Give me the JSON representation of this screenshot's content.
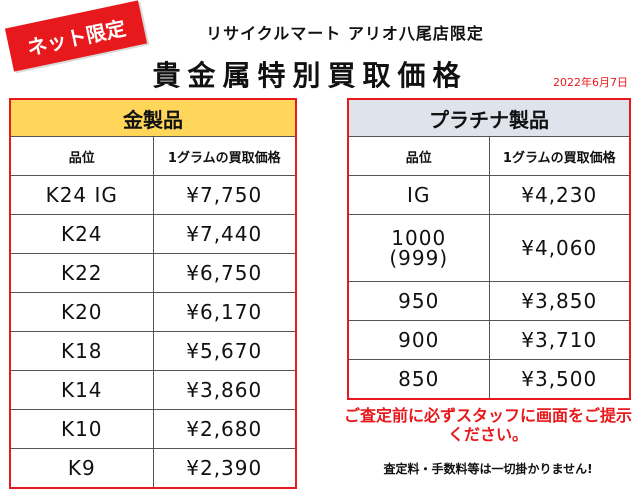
{
  "badge": "ネット限定",
  "store_name": "リサイクルマート アリオ八尾店限定",
  "title": "貴金属特別買取価格",
  "date": "2022年6月7日",
  "gold": {
    "caption": "金製品",
    "col_grade": "品位",
    "col_price": "1グラムの買取価格",
    "rows": [
      {
        "grade": "K24 IG",
        "price": "¥7,750"
      },
      {
        "grade": "K24",
        "price": "¥7,440"
      },
      {
        "grade": "K22",
        "price": "¥6,750"
      },
      {
        "grade": "K20",
        "price": "¥6,170"
      },
      {
        "grade": "K18",
        "price": "¥5,670"
      },
      {
        "grade": "K14",
        "price": "¥3,860"
      },
      {
        "grade": "K10",
        "price": "¥2,680"
      },
      {
        "grade": "K9",
        "price": "¥2,390"
      }
    ]
  },
  "platinum": {
    "caption": "プラチナ製品",
    "col_grade": "品位",
    "col_price": "1グラムの買取価格",
    "rows": [
      {
        "grade": "IG",
        "price": "¥4,230"
      },
      {
        "grade": "1000",
        "grade_sub": "(999)",
        "price": "¥4,060"
      },
      {
        "grade": "950",
        "price": "¥3,850"
      },
      {
        "grade": "900",
        "price": "¥3,710"
      },
      {
        "grade": "850",
        "price": "¥3,500"
      }
    ]
  },
  "notice": "ご査定前に必ずスタッフに画面をご提示ください。",
  "fee_note": "査定料・手数料等は一切掛かりません!",
  "colors": {
    "accent": "#e8191c",
    "gold_header": "#ffd65a",
    "platinum_header": "#dfe3ec"
  }
}
